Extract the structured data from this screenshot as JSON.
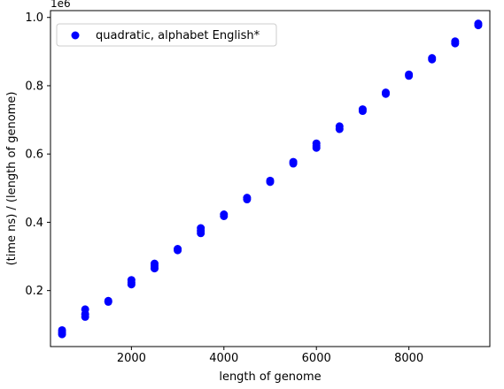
{
  "chart_data": {
    "type": "scatter",
    "xlabel": "length of genome",
    "ylabel": "(time ns) / (length of genome)",
    "y_offset_label": "1e6",
    "xlim": [
      250,
      9750
    ],
    "ylim": [
      0.036,
      1.02
    ],
    "x_ticks": [
      2000,
      4000,
      6000,
      8000
    ],
    "x_tick_labels": [
      "2000",
      "4000",
      "6000",
      "8000"
    ],
    "y_ticks": [
      0.2,
      0.4,
      0.6,
      0.8,
      1.0
    ],
    "y_tick_labels": [
      "0.2",
      "0.4",
      "0.6",
      "0.8",
      "1.0"
    ],
    "grid": false,
    "legend_position": "upper-left",
    "series": [
      {
        "name": "quadratic, alphabet English*",
        "color": "#0000ff",
        "x": [
          500,
          500,
          500,
          1000,
          1000,
          1000,
          1500,
          1500,
          2000,
          2000,
          2000,
          2500,
          2500,
          2500,
          3000,
          3000,
          3500,
          3500,
          3500,
          4000,
          4000,
          4500,
          4500,
          5000,
          5000,
          5500,
          5500,
          6000,
          6000,
          6000,
          6500,
          6500,
          7000,
          7000,
          7500,
          7500,
          8000,
          8000,
          8500,
          8500,
          9000,
          9000,
          9500,
          9500
        ],
        "y": [
          0.072,
          0.078,
          0.084,
          0.123,
          0.131,
          0.145,
          0.167,
          0.17,
          0.218,
          0.224,
          0.231,
          0.265,
          0.272,
          0.279,
          0.318,
          0.322,
          0.368,
          0.375,
          0.383,
          0.418,
          0.423,
          0.467,
          0.472,
          0.518,
          0.522,
          0.572,
          0.577,
          0.618,
          0.624,
          0.631,
          0.673,
          0.681,
          0.726,
          0.731,
          0.776,
          0.78,
          0.829,
          0.833,
          0.877,
          0.881,
          0.924,
          0.93,
          0.977,
          0.982
        ]
      }
    ]
  }
}
